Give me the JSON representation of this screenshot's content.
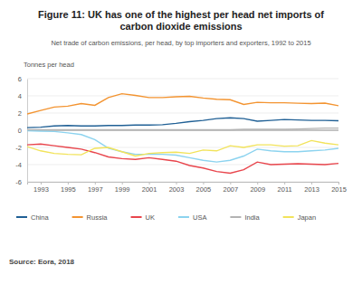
{
  "chart_data": {
    "type": "line",
    "title": "Figure 11: UK has one of the highest per head net imports of carbon dioxide emissions",
    "subtitle": "Net trade of carbon emissions, per head, by top importers and exporters, 1992 to 2015",
    "y_label": "Tonnes per head",
    "source": "Source: Eora, 2018",
    "x": [
      1992,
      1993,
      1994,
      1995,
      1996,
      1997,
      1998,
      1999,
      2000,
      2001,
      2002,
      2003,
      2004,
      2005,
      2006,
      2007,
      2008,
      2009,
      2010,
      2011,
      2012,
      2013,
      2014,
      2015
    ],
    "xlim": [
      1992,
      2015
    ],
    "xticks": [
      1993,
      1995,
      1997,
      1999,
      2001,
      2003,
      2005,
      2007,
      2009,
      2011,
      2013,
      2015
    ],
    "ylim": [
      -6,
      6
    ],
    "yticks": [
      -6,
      -4,
      -2,
      0,
      2,
      4,
      6
    ],
    "grid": true,
    "legend": "bottom",
    "series": [
      {
        "name": "China",
        "color": "#206095",
        "values": [
          0.3,
          0.35,
          0.5,
          0.55,
          0.5,
          0.5,
          0.55,
          0.55,
          0.6,
          0.6,
          0.65,
          0.8,
          1.0,
          1.15,
          1.35,
          1.45,
          1.35,
          1.05,
          1.15,
          1.25,
          1.2,
          1.15,
          1.15,
          1.1
        ]
      },
      {
        "name": "Russia",
        "color": "#f39431",
        "values": [
          1.9,
          2.3,
          2.7,
          2.8,
          3.1,
          2.9,
          3.8,
          4.25,
          4.05,
          3.8,
          3.8,
          3.9,
          3.95,
          3.75,
          3.6,
          3.55,
          3.0,
          3.25,
          3.2,
          3.2,
          3.15,
          3.1,
          3.15,
          2.85
        ]
      },
      {
        "name": "UK",
        "color": "#e8454c",
        "values": [
          -1.7,
          -1.6,
          -1.8,
          -2.0,
          -2.2,
          -2.6,
          -3.1,
          -3.3,
          -3.4,
          -3.2,
          -3.4,
          -3.6,
          -4.1,
          -4.4,
          -4.8,
          -5.0,
          -4.6,
          -3.7,
          -4.0,
          -3.95,
          -3.9,
          -3.95,
          -4.0,
          -3.85
        ]
      },
      {
        "name": "USA",
        "color": "#8cd3ef",
        "values": [
          -0.05,
          -0.1,
          -0.15,
          -0.3,
          -0.5,
          -1.1,
          -2.1,
          -2.5,
          -2.8,
          -2.8,
          -2.8,
          -2.9,
          -3.2,
          -3.5,
          -3.7,
          -3.5,
          -3.0,
          -2.2,
          -2.4,
          -2.5,
          -2.5,
          -2.4,
          -2.3,
          -2.1
        ]
      },
      {
        "name": "India",
        "color": "#b3b3b3",
        "values": [
          0.05,
          0.05,
          0.05,
          0.05,
          0.05,
          0.05,
          0.05,
          0.05,
          0.05,
          0.05,
          0.05,
          0.05,
          0.05,
          0.05,
          0.05,
          0.05,
          0.1,
          0.1,
          0.1,
          0.1,
          0.15,
          0.2,
          0.25,
          0.25
        ]
      },
      {
        "name": "Japan",
        "color": "#f2e35b",
        "values": [
          -1.9,
          -2.4,
          -2.7,
          -2.8,
          -2.85,
          -2.1,
          -2.0,
          -2.5,
          -3.0,
          -2.7,
          -2.6,
          -2.55,
          -2.7,
          -2.3,
          -2.4,
          -1.8,
          -2.0,
          -1.7,
          -1.7,
          -1.85,
          -1.8,
          -1.2,
          -1.5,
          -1.7
        ]
      }
    ]
  }
}
